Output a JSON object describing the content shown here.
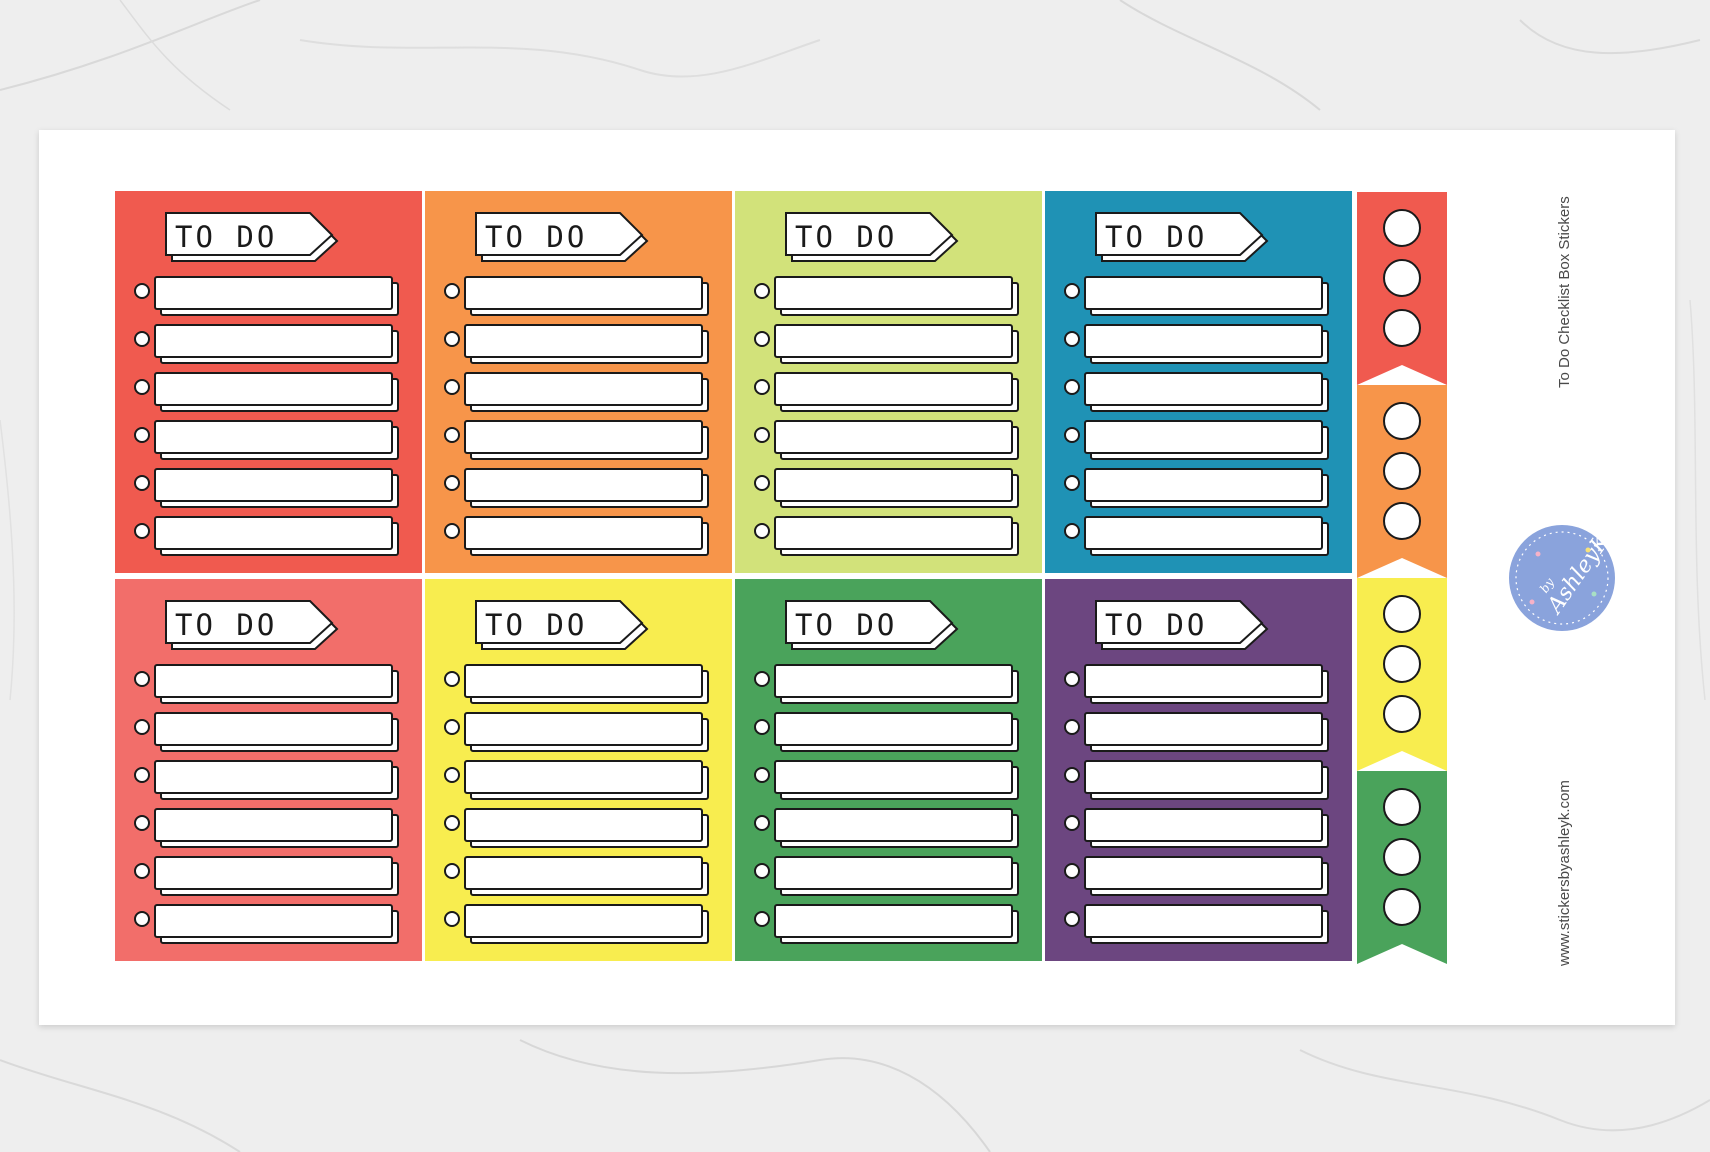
{
  "product": {
    "title": "To Do Checklist Box Stickers",
    "website": "www.stickersbyashleyk.com",
    "brand_small": "by",
    "brand_name": "AshleyK"
  },
  "sticker_label": "TO DO",
  "boxes": [
    {
      "color": "#f05a4f"
    },
    {
      "color": "#f7954a"
    },
    {
      "color": "#d2e27a"
    },
    {
      "color": "#1f92b5"
    },
    {
      "color": "#f26e6a"
    },
    {
      "color": "#f8ed4f"
    },
    {
      "color": "#4aa35b"
    },
    {
      "color": "#6c4680"
    }
  ],
  "flags": [
    {
      "color": "#f05a4f"
    },
    {
      "color": "#f7954a"
    },
    {
      "color": "#f8ed4f"
    },
    {
      "color": "#4aa35b"
    }
  ],
  "brand_badge_color": "#8aa3dc"
}
